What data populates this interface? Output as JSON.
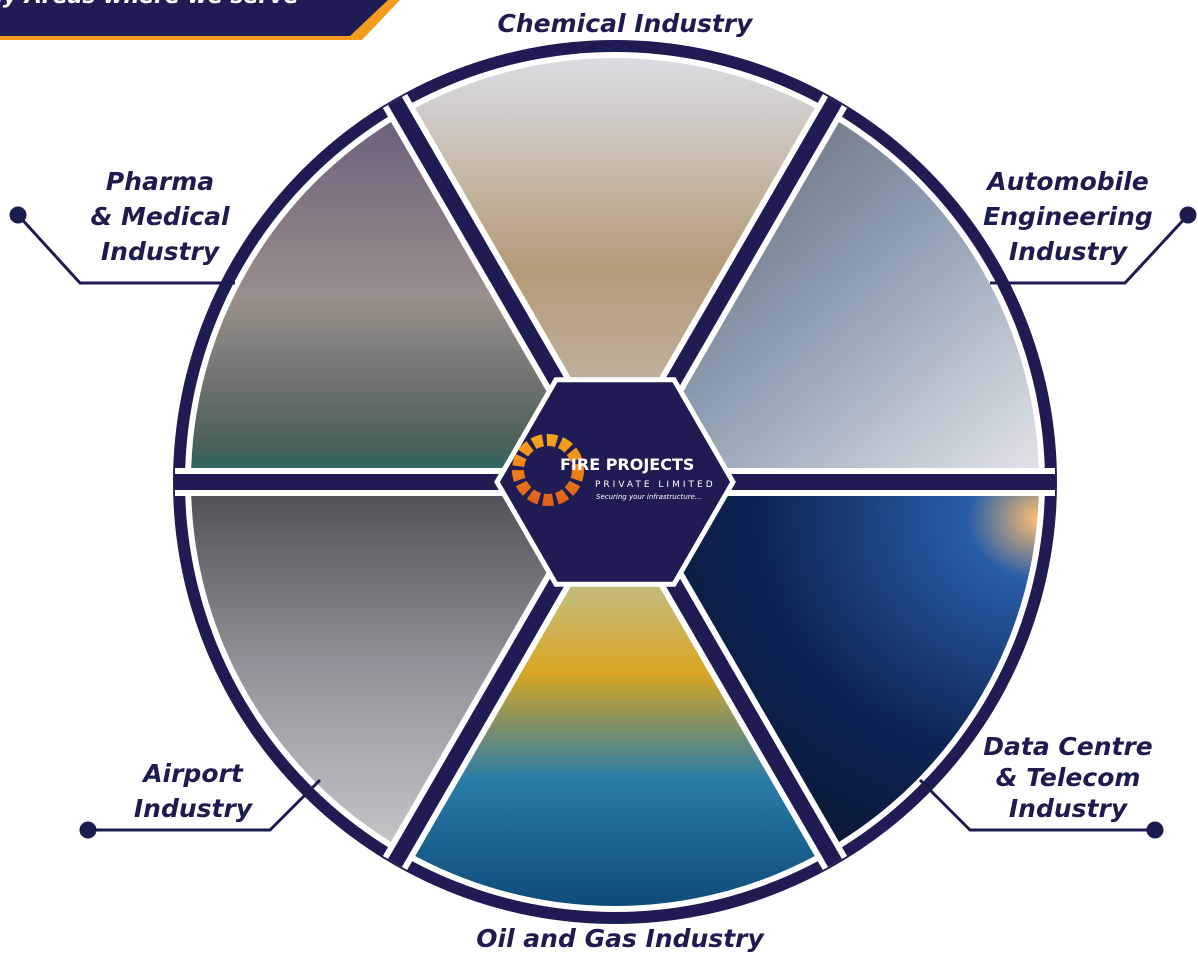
{
  "banner": {
    "title": "Key Areas where we serve"
  },
  "center_logo": {
    "name": "FIRE PROJECTS",
    "subtitle": "PRIVATE LIMITED",
    "tagline": "Securing your infrastructure..."
  },
  "segments": [
    {
      "label_lines": [
        "Chemical Industry"
      ]
    },
    {
      "label_lines": [
        "Automobile",
        "Engineering",
        "Industry"
      ]
    },
    {
      "label_lines": [
        "Data Centre",
        "& Telecom",
        "Industry"
      ]
    },
    {
      "label_lines": [
        "Oil and Gas Industry"
      ]
    },
    {
      "label_lines": [
        "Airport",
        "Industry"
      ]
    },
    {
      "label_lines": [
        "Pharma",
        "& Medical",
        "Industry"
      ]
    }
  ]
}
